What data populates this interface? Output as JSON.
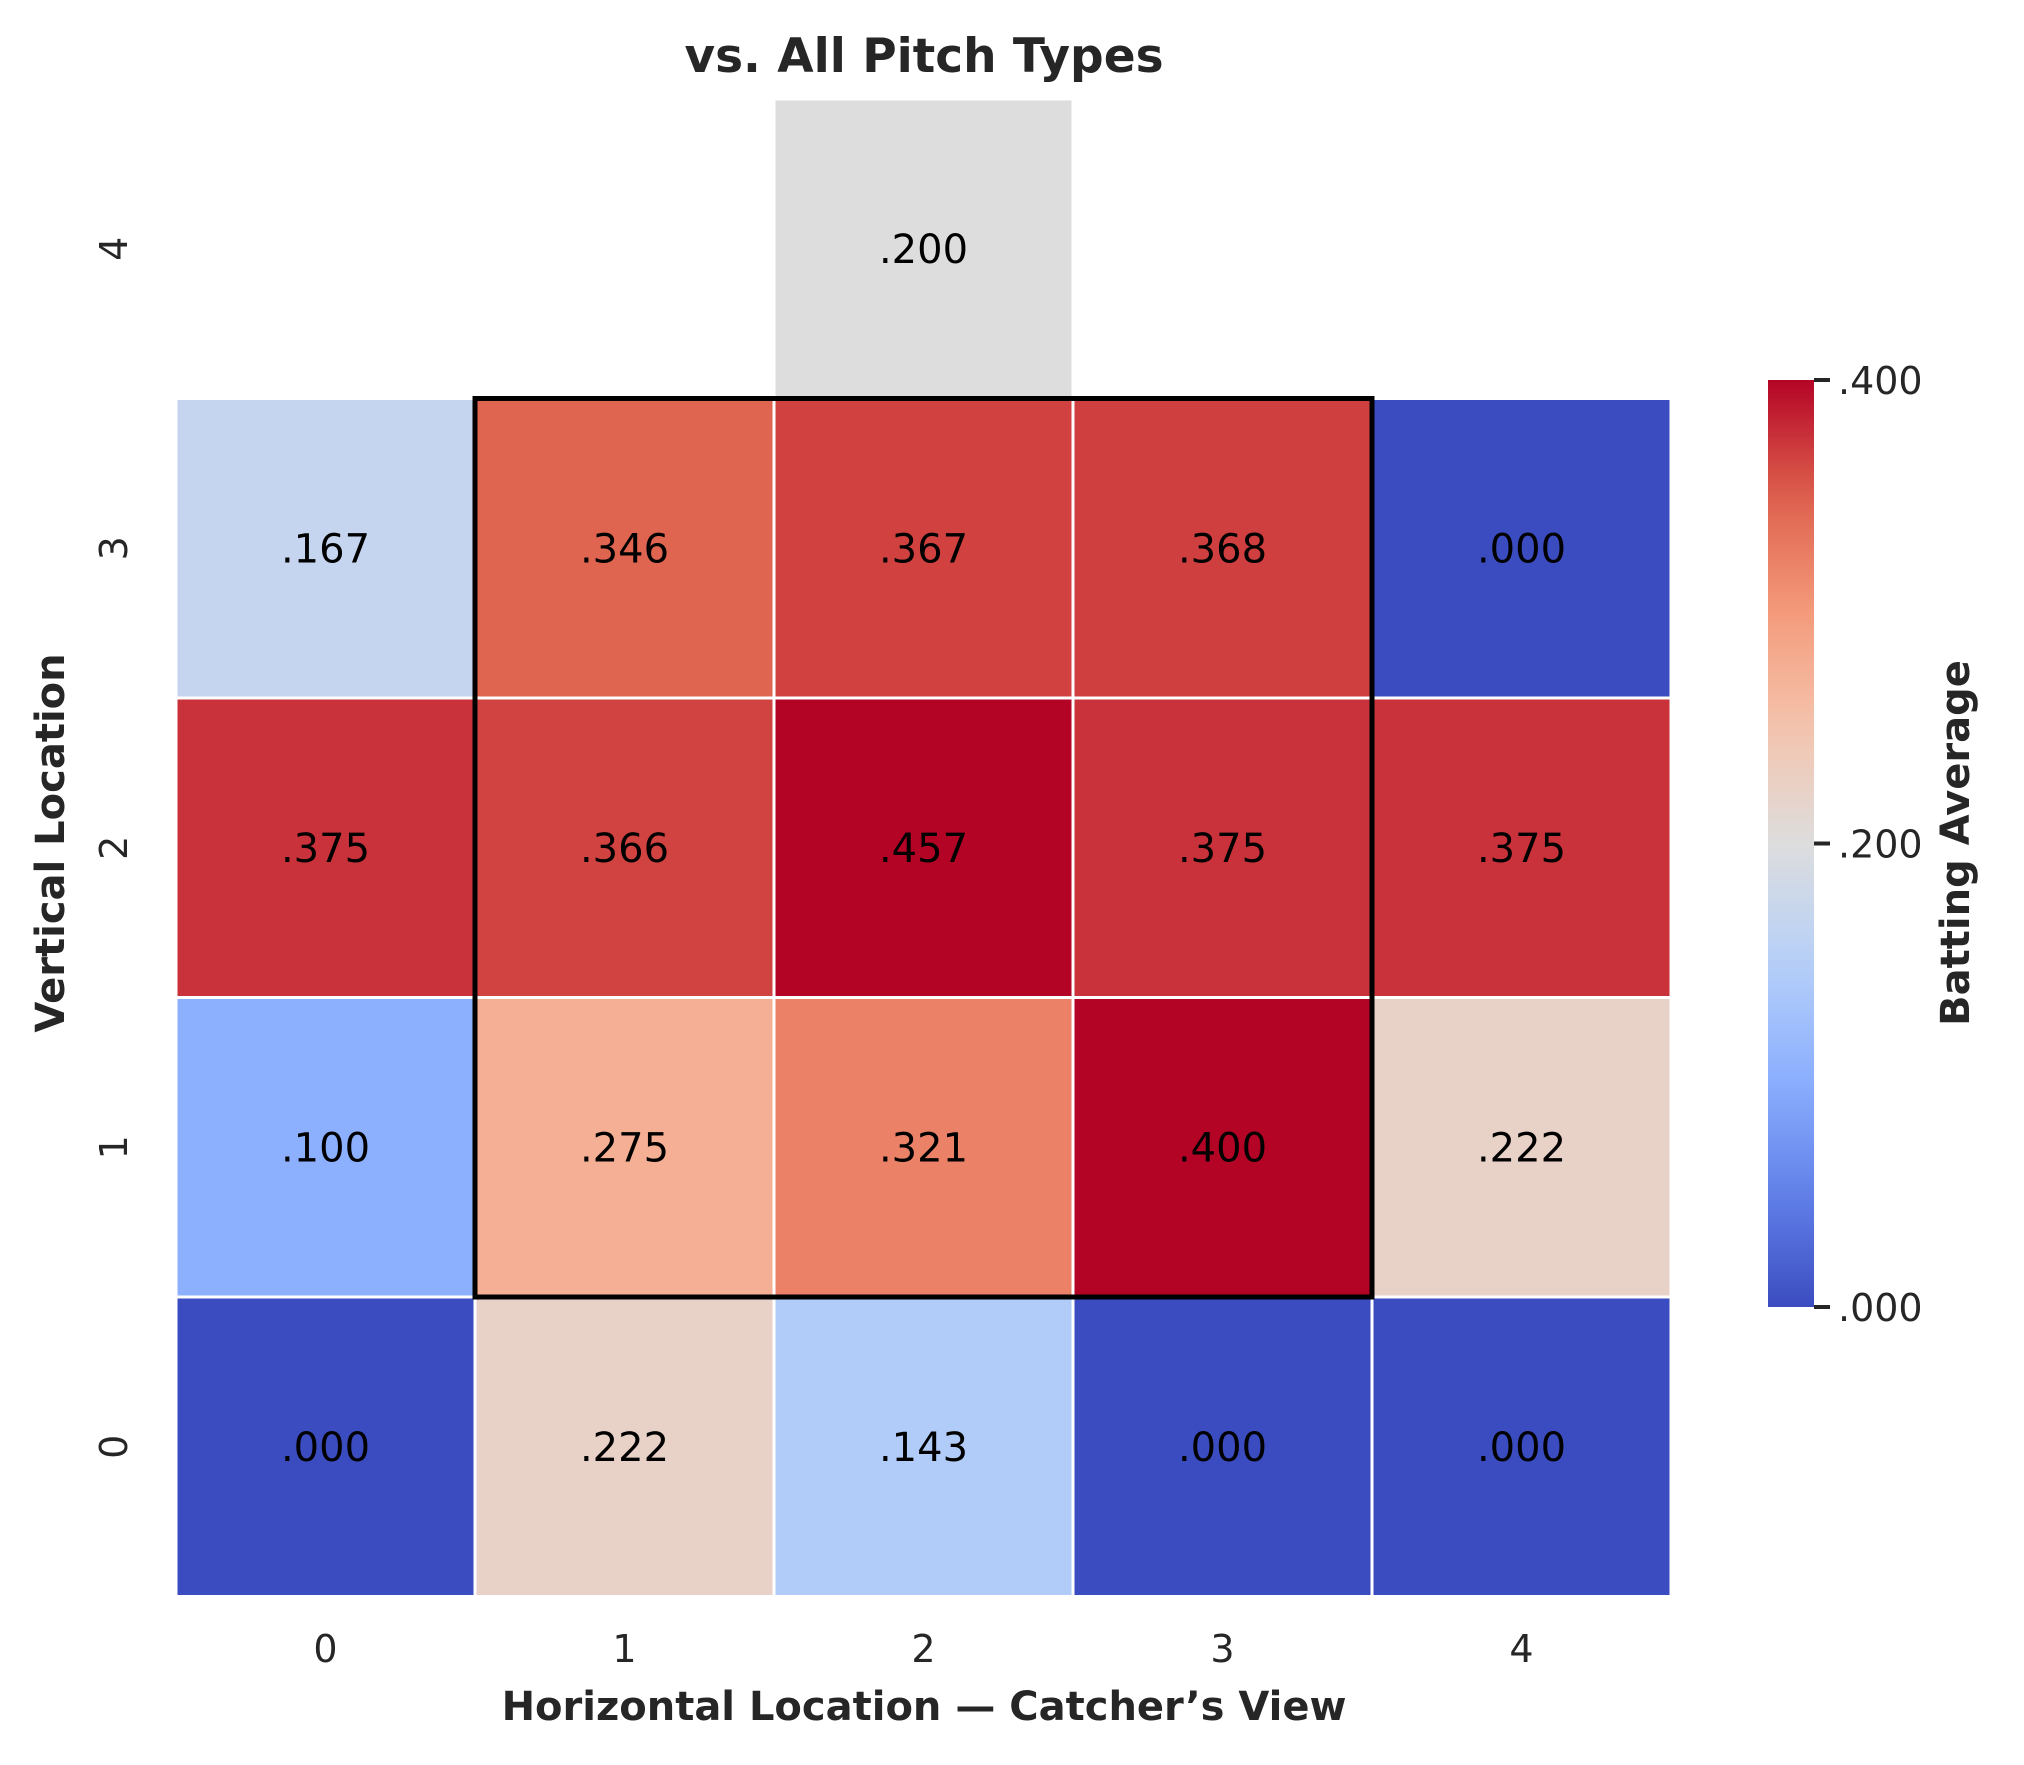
{
  "chart_data": {
    "type": "heatmap",
    "title": "vs. All Pitch Types",
    "xlabel": "Horizontal Location — Catcher’s View",
    "ylabel": "Vertical Location",
    "x_categories": [
      "0",
      "1",
      "2",
      "3",
      "4"
    ],
    "y_categories": [
      "4",
      "3",
      "2",
      "1",
      "0"
    ],
    "values": [
      [
        null,
        null,
        0.2,
        null,
        null
      ],
      [
        0.167,
        0.346,
        0.367,
        0.368,
        0.0
      ],
      [
        0.375,
        0.366,
        0.457,
        0.375,
        0.375
      ],
      [
        0.1,
        0.275,
        0.321,
        0.4,
        0.222
      ],
      [
        0.0,
        0.222,
        0.143,
        0.0,
        0.0
      ]
    ],
    "cell_labels": [
      [
        null,
        null,
        ".200",
        null,
        null
      ],
      [
        ".167",
        ".346",
        ".367",
        ".368",
        ".000"
      ],
      [
        ".375",
        ".366",
        ".457",
        ".375",
        ".375"
      ],
      [
        ".100",
        ".275",
        ".321",
        ".400",
        ".222"
      ],
      [
        ".000",
        ".222",
        ".143",
        ".000",
        ".000"
      ]
    ],
    "colorbar": {
      "label": "Batting Average",
      "min": 0.0,
      "max": 0.4,
      "ticks": [
        0.0,
        0.2,
        0.4
      ],
      "tick_labels": [
        ".000",
        ".200",
        ".400"
      ],
      "colormap": "coolwarm"
    },
    "strike_zone": {
      "x_range": [
        "1",
        "3"
      ],
      "y_range": [
        "1",
        "3"
      ]
    },
    "colors": {
      "cell_border": "#ffffff",
      "strike_zone_outline": "#000000",
      "text": "#262626"
    }
  }
}
